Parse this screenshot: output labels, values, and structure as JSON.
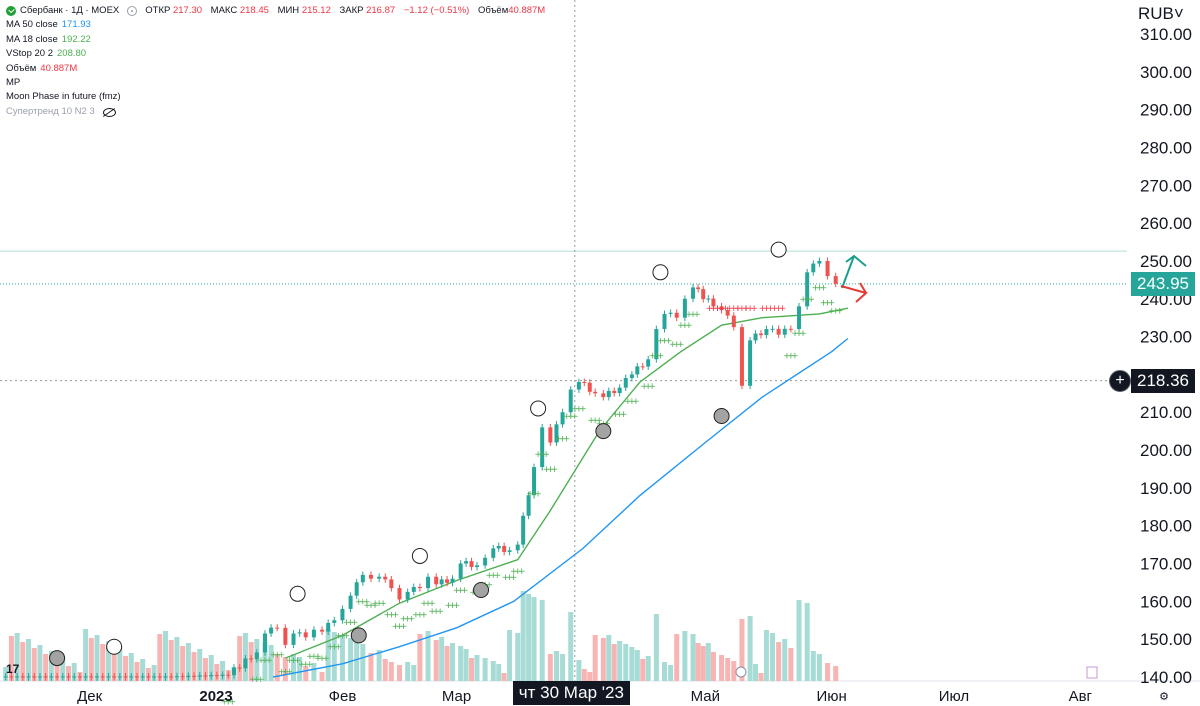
{
  "legend": {
    "title": "Сбербанк · 1Д · MOEX",
    "ohlc": [
      {
        "k": "ОТКР",
        "v": "217.30"
      },
      {
        "k": "МАКС",
        "v": "218.45"
      },
      {
        "k": "МИН",
        "v": "215.12"
      },
      {
        "k": "ЗАКР",
        "v": "216.87"
      },
      {
        "k": "",
        "v": "−1.12 (−0.51%)"
      },
      {
        "k": "Объём",
        "v": "40.887M"
      }
    ],
    "indicators": [
      {
        "name": "MA 50 close",
        "value": "171.93",
        "color": "#2196f3"
      },
      {
        "name": "MA 18 close",
        "value": "192.22",
        "color": "#4caf50"
      },
      {
        "name": "VStop 20 2",
        "value": "208.80",
        "color": "#4caf50"
      },
      {
        "name": "Объём",
        "value": "40.887M",
        "color": "#f23645"
      },
      {
        "name": "MP",
        "value": "",
        "color": "#131722"
      },
      {
        "name": "Moon Phase in future (fmz)",
        "value": "",
        "color": "#131722"
      },
      {
        "name": "Супертренд 10 N2 3",
        "value": "",
        "color": "#9aa0ab"
      }
    ]
  },
  "currency": "RUB",
  "price_labels": {
    "last": "243.95",
    "crosshair": "218.36",
    "date_crosshair": "чт 30 Мар '23"
  },
  "x_axis_labels": [
    "Дек",
    "2023",
    "Фев",
    "Мар",
    "Май",
    "Июн",
    "Июл",
    "Авг"
  ],
  "colors": {
    "up": "#26a69a",
    "down": "#ef5350",
    "ma50": "#2196f3",
    "ma18": "#4caf50",
    "vstop_up": "#4caf50",
    "vstop_down": "#f23645",
    "last_price_bg": "#26a69a",
    "crosshair_bg": "#131722"
  },
  "chart_data": {
    "type": "candlestick",
    "title": "Сбербанк · 1Д · MOEX",
    "ylabel": "RUB",
    "ylim": [
      140,
      313
    ],
    "yticks": [
      140,
      150,
      160,
      170,
      180,
      190,
      200,
      210,
      220,
      230,
      240,
      250,
      260,
      270,
      280,
      290,
      300,
      310
    ],
    "ytick_labels": [
      "140.00",
      "150.00",
      "160.00",
      "170.00",
      "180.00",
      "190.00",
      "200.00",
      "210.00",
      "220.00",
      "230.00",
      "240.00",
      "250.00",
      "260.00",
      "270.00",
      "280.00",
      "290.00",
      "300.00",
      "310.00"
    ],
    "x_start": "2022-11-09",
    "x_end": "2023-08-23",
    "xticks": [
      {
        "label": "Дек",
        "date": "2022-12-01",
        "bold": false
      },
      {
        "label": "2023",
        "date": "2023-01-01",
        "bold": true
      },
      {
        "label": "Фев",
        "date": "2023-02-01",
        "bold": false
      },
      {
        "label": "Мар",
        "date": "2023-03-01",
        "bold": false
      },
      {
        "label": "Май",
        "date": "2023-05-01",
        "bold": false
      },
      {
        "label": "Июн",
        "date": "2023-06-01",
        "bold": false
      },
      {
        "label": "Июл",
        "date": "2023-07-01",
        "bold": false
      },
      {
        "label": "Авг",
        "date": "2023-08-01",
        "bold": false
      }
    ],
    "crosshair": {
      "date": "2023-03-30",
      "price": 218.36
    },
    "last_price": 243.95,
    "resistance_line": 252.6,
    "close_series": [
      {
        "date": "2022-11-09",
        "close": 140.0
      },
      {
        "date": "2022-11-23",
        "close": 140.0
      },
      {
        "date": "2022-12-07",
        "close": 140.0
      },
      {
        "date": "2022-12-21",
        "close": 140.0
      },
      {
        "date": "2023-01-04",
        "close": 140.5
      },
      {
        "date": "2023-01-11",
        "close": 146.5
      },
      {
        "date": "2023-01-13",
        "close": 151.5
      },
      {
        "date": "2023-01-16",
        "close": 153.0
      },
      {
        "date": "2023-01-18",
        "close": 148.5
      },
      {
        "date": "2023-01-20",
        "close": 151.5
      },
      {
        "date": "2023-01-23",
        "close": 150.5
      },
      {
        "date": "2023-01-25",
        "close": 152.5
      },
      {
        "date": "2023-01-27",
        "close": 152.0
      },
      {
        "date": "2023-01-30",
        "close": 155.0
      },
      {
        "date": "2023-02-01",
        "close": 158.0
      },
      {
        "date": "2023-02-03",
        "close": 161.5
      },
      {
        "date": "2023-02-06",
        "close": 167.0
      },
      {
        "date": "2023-02-08",
        "close": 166.0
      },
      {
        "date": "2023-02-10",
        "close": 166.5
      },
      {
        "date": "2023-02-13",
        "close": 163.5
      },
      {
        "date": "2023-02-15",
        "close": 160.5
      },
      {
        "date": "2023-02-17",
        "close": 162.5
      },
      {
        "date": "2023-02-20",
        "close": 163.5
      },
      {
        "date": "2023-02-22",
        "close": 166.5
      },
      {
        "date": "2023-02-24",
        "close": 164.5
      },
      {
        "date": "2023-02-28",
        "close": 166.0
      },
      {
        "date": "2023-03-02",
        "close": 170.0
      },
      {
        "date": "2023-03-06",
        "close": 169.5
      },
      {
        "date": "2023-03-08",
        "close": 171.5
      },
      {
        "date": "2023-03-10",
        "close": 174.0
      },
      {
        "date": "2023-03-14",
        "close": 173.5
      },
      {
        "date": "2023-03-16",
        "close": 175.0
      },
      {
        "date": "2023-03-20",
        "close": 195.5
      },
      {
        "date": "2023-03-22",
        "close": 206.0
      },
      {
        "date": "2023-03-24",
        "close": 202.0
      },
      {
        "date": "2023-03-27",
        "close": 210.0
      },
      {
        "date": "2023-03-29",
        "close": 216.0
      },
      {
        "date": "2023-03-31",
        "close": 218.0
      },
      {
        "date": "2023-04-04",
        "close": 215.0
      },
      {
        "date": "2023-04-06",
        "close": 214.0
      },
      {
        "date": "2023-04-10",
        "close": 216.5
      },
      {
        "date": "2023-04-13",
        "close": 220.0
      },
      {
        "date": "2023-04-17",
        "close": 224.0
      },
      {
        "date": "2023-04-19",
        "close": 232.0
      },
      {
        "date": "2023-04-21",
        "close": 236.0
      },
      {
        "date": "2023-04-24",
        "close": 235.0
      },
      {
        "date": "2023-04-26",
        "close": 240.0
      },
      {
        "date": "2023-04-28",
        "close": 243.0
      },
      {
        "date": "2023-05-03",
        "close": 238.0
      },
      {
        "date": "2023-05-05",
        "close": 237.0
      },
      {
        "date": "2023-05-08",
        "close": 232.5
      },
      {
        "date": "2023-05-10",
        "close": 217.0
      },
      {
        "date": "2023-05-12",
        "close": 229.0
      },
      {
        "date": "2023-05-16",
        "close": 232.0
      },
      {
        "date": "2023-05-19",
        "close": 230.5
      },
      {
        "date": "2023-05-22",
        "close": 232.0
      },
      {
        "date": "2023-05-24",
        "close": 238.0
      },
      {
        "date": "2023-05-26",
        "close": 247.0
      },
      {
        "date": "2023-05-29",
        "close": 250.0
      },
      {
        "date": "2023-05-31",
        "close": 246.0
      },
      {
        "date": "2023-06-02",
        "close": 243.95
      }
    ],
    "series": [
      {
        "name": "MA 50 close",
        "points": [
          {
            "date": "2023-01-15",
            "value": 140.0
          },
          {
            "date": "2023-02-01",
            "value": 143.5
          },
          {
            "date": "2023-02-15",
            "value": 148.0
          },
          {
            "date": "2023-03-01",
            "value": 153.0
          },
          {
            "date": "2023-03-15",
            "value": 160.0
          },
          {
            "date": "2023-04-01",
            "value": 174.0
          },
          {
            "date": "2023-04-15",
            "value": 188.0
          },
          {
            "date": "2023-05-01",
            "value": 202.0
          },
          {
            "date": "2023-05-15",
            "value": 214.0
          },
          {
            "date": "2023-06-01",
            "value": 226.0
          },
          {
            "date": "2023-06-05",
            "value": 229.5
          }
        ]
      },
      {
        "name": "MA 18 close",
        "points": [
          {
            "date": "2023-01-18",
            "value": 145.0
          },
          {
            "date": "2023-02-01",
            "value": 151.0
          },
          {
            "date": "2023-02-15",
            "value": 159.5
          },
          {
            "date": "2023-03-01",
            "value": 165.5
          },
          {
            "date": "2023-03-16",
            "value": 171.0
          },
          {
            "date": "2023-03-24",
            "value": 184.0
          },
          {
            "date": "2023-04-05",
            "value": 205.0
          },
          {
            "date": "2023-04-15",
            "value": 218.0
          },
          {
            "date": "2023-04-25",
            "value": 226.0
          },
          {
            "date": "2023-05-05",
            "value": 233.0
          },
          {
            "date": "2023-05-15",
            "value": 235.0
          },
          {
            "date": "2023-05-29",
            "value": 236.0
          },
          {
            "date": "2023-06-05",
            "value": 237.5
          }
        ]
      }
    ],
    "volume_label": "40.887M",
    "moon_phase_markers": [
      {
        "date": "2022-11-23",
        "price": 145,
        "phase": "full"
      },
      {
        "date": "2022-12-07",
        "price": 148,
        "phase": "new"
      },
      {
        "date": "2023-01-21",
        "price": 162,
        "phase": "new"
      },
      {
        "date": "2023-02-05",
        "price": 151,
        "phase": "full"
      },
      {
        "date": "2023-02-20",
        "price": 172,
        "phase": "new"
      },
      {
        "date": "2023-03-07",
        "price": 163,
        "phase": "full"
      },
      {
        "date": "2023-03-21",
        "price": 211,
        "phase": "new"
      },
      {
        "date": "2023-04-06",
        "price": 205,
        "phase": "full"
      },
      {
        "date": "2023-04-20",
        "price": 247,
        "phase": "new"
      },
      {
        "date": "2023-05-05",
        "price": 209,
        "phase": "full"
      },
      {
        "date": "2023-05-19",
        "price": 253,
        "phase": "new"
      }
    ]
  }
}
